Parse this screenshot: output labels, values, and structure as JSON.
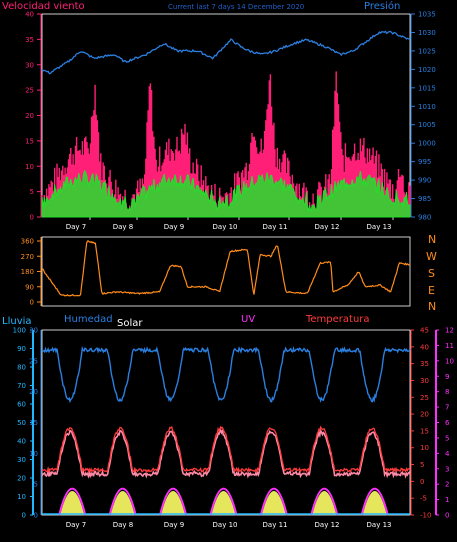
{
  "colors": {
    "wind": "#ff1f77",
    "gust": "#ff1f77",
    "avgwind": "#22e02a",
    "pressure": "#2a7fe0",
    "direction": "#ff8c1a",
    "humidity": "#2a7fe0",
    "temperature": "#ff3a3a",
    "solar": "#ffff66",
    "uv": "#ff2fff",
    "rain": "#22b8ff",
    "axis_left_top": "#ff1f77",
    "axis_right_top": "#2a7fe0",
    "axis_dir": "#ff8c1a",
    "axis_rain": "#22b8ff",
    "axis_hum": "#2a7fe0",
    "axis_temp": "#ff3a3a",
    "axis_uv": "#ff2fff",
    "title": "#2060c8"
  },
  "header": {
    "wind_title": "Velocidad viento",
    "center_title": "Current last 7 days 14 December 2020",
    "pressure_title": "Presión"
  },
  "direction_labels": [
    "N",
    "W",
    "S",
    "E",
    "N"
  ],
  "bottom_titles": {
    "rain": "Lluvia",
    "humidity": "Humedad",
    "solar": "Solar",
    "uv": "UV",
    "temperature": "Temperatura"
  },
  "chart_data": [
    {
      "type": "line",
      "title": "Velocidad viento",
      "x_categories": [
        "Day 7",
        "Day 8",
        "Day 9",
        "Day 10",
        "Day 11",
        "Day 12",
        "Day 13"
      ],
      "y_left": {
        "label": "Velocidad viento",
        "range": [
          0,
          40
        ],
        "ticks": [
          0,
          5,
          10,
          15,
          20,
          25,
          30,
          35,
          40
        ]
      },
      "y_right": {
        "label": "Presión",
        "range": [
          980,
          1035
        ],
        "ticks": [
          980,
          985,
          990,
          995,
          1000,
          1005,
          1010,
          1015,
          1020,
          1025,
          1030,
          1035
        ]
      },
      "pressure_keypoints": [
        [
          0,
          1020
        ],
        [
          0.3,
          1019
        ],
        [
          1,
          1022
        ],
        [
          1.5,
          1025
        ],
        [
          2,
          1023
        ],
        [
          2.8,
          1024
        ],
        [
          3.2,
          1022
        ],
        [
          4,
          1024
        ],
        [
          4.7,
          1027
        ],
        [
          5.2,
          1025
        ],
        [
          6,
          1025
        ],
        [
          6.6,
          1023
        ],
        [
          7,
          1026
        ],
        [
          7.3,
          1028
        ],
        [
          7.7,
          1026
        ],
        [
          8,
          1025
        ],
        [
          8.5,
          1024
        ],
        [
          9,
          1025
        ],
        [
          9.7,
          1027
        ],
        [
          10.2,
          1028
        ],
        [
          11,
          1026
        ],
        [
          11.5,
          1024
        ],
        [
          12,
          1025
        ],
        [
          12.6,
          1028
        ],
        [
          13,
          1030
        ],
        [
          13.5,
          1030
        ],
        [
          14.2,
          1028
        ]
      ],
      "gust_peaks": [
        [
          2.3,
          22
        ],
        [
          4.7,
          27
        ],
        [
          6.2,
          13
        ],
        [
          9.2,
          15
        ],
        [
          9.9,
          23
        ],
        [
          12.8,
          27
        ],
        [
          15.6,
          14
        ]
      ],
      "series": [
        {
          "name": "gust",
          "base": 6,
          "amp": 8
        },
        {
          "name": "avg",
          "base": 4,
          "amp": 4
        }
      ]
    },
    {
      "type": "line",
      "title": "",
      "y_left": {
        "range": [
          0,
          360
        ],
        "ticks": [
          0,
          90,
          180,
          270,
          360
        ]
      },
      "direction_keypoints": [
        [
          0,
          200
        ],
        [
          0.2,
          160
        ],
        [
          0.9,
          40
        ],
        [
          1.8,
          40
        ],
        [
          2.1,
          360
        ],
        [
          2.5,
          345
        ],
        [
          2.8,
          50
        ],
        [
          3.5,
          60
        ],
        [
          4.5,
          50
        ],
        [
          5.5,
          60
        ],
        [
          6.0,
          215
        ],
        [
          6.5,
          210
        ],
        [
          6.8,
          90
        ],
        [
          7.7,
          90
        ],
        [
          8.3,
          60
        ],
        [
          8.8,
          300
        ],
        [
          9.6,
          310
        ],
        [
          9.9,
          40
        ],
        [
          10.2,
          280
        ],
        [
          10.7,
          270
        ],
        [
          11.0,
          340
        ],
        [
          11.4,
          60
        ],
        [
          12.4,
          50
        ],
        [
          13.0,
          230
        ],
        [
          13.5,
          235
        ],
        [
          13.6,
          60
        ],
        [
          14.3,
          100
        ],
        [
          14.8,
          180
        ],
        [
          15.1,
          90
        ],
        [
          15.8,
          100
        ],
        [
          16.3,
          60
        ],
        [
          16.7,
          230
        ],
        [
          17.2,
          220
        ]
      ]
    },
    {
      "type": "line",
      "title": "",
      "y_rain": {
        "label": "Lluvia",
        "range": [
          0,
          100
        ],
        "ticks": [
          0,
          10,
          20,
          30,
          40,
          50,
          60,
          70,
          80,
          90,
          100
        ]
      },
      "y_hum": {
        "label": "Humedad",
        "range": [
          0,
          30
        ],
        "ticks": [
          0,
          5,
          10,
          15,
          20,
          25,
          30
        ]
      },
      "y_temp": {
        "label": "Temperatura",
        "range": [
          -10,
          45
        ],
        "ticks": [
          -10,
          -5,
          0,
          5,
          10,
          15,
          20,
          25,
          30,
          35,
          40,
          45
        ]
      },
      "y_uv": {
        "label": "UV",
        "range": [
          0,
          12
        ],
        "ticks": [
          0,
          1,
          2,
          3,
          4,
          5,
          6,
          7,
          8,
          9,
          10,
          11,
          12
        ]
      },
      "humidity_cycle": {
        "low": 70,
        "high": 90
      },
      "temperature_cycle": {
        "low": 2,
        "high": 12
      },
      "solar_peaks": [
        0.6,
        1.6,
        2.6,
        3.6,
        4.6,
        5.6,
        6.6,
        7.6
      ]
    }
  ]
}
